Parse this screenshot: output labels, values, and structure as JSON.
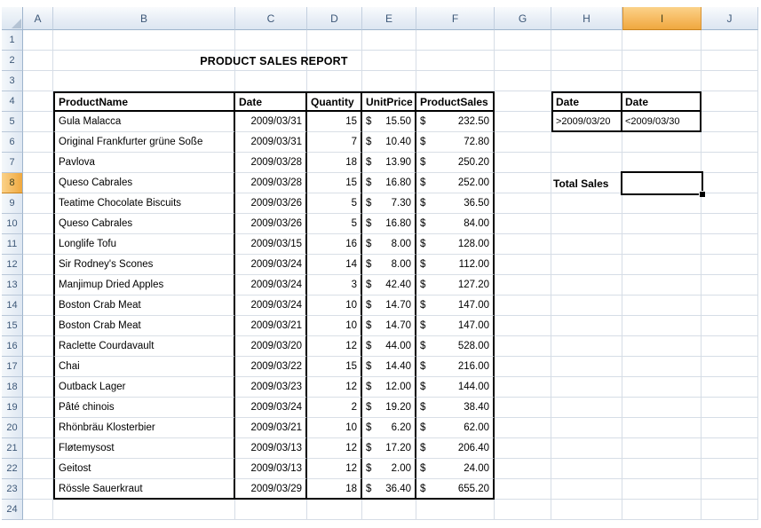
{
  "title": "PRODUCT SALES REPORT",
  "column_headers": [
    "A",
    "B",
    "C",
    "D",
    "E",
    "F",
    "G",
    "H",
    "I",
    "J"
  ],
  "row_numbers_visible": 24,
  "selection": {
    "active_cell": "I8",
    "selected_column": "I",
    "selected_row": 8
  },
  "sales_table": {
    "headers": [
      "ProductName",
      "Date",
      "Quantity",
      "UnitPrice",
      "ProductSales"
    ],
    "currency_symbol": "$",
    "rows": [
      {
        "product": "Gula Malacca",
        "date": "2009/03/31",
        "quantity": "15",
        "unit_price": "15.50",
        "product_sales": "232.50"
      },
      {
        "product": "Original Frankfurter grüne Soße",
        "date": "2009/03/31",
        "quantity": "7",
        "unit_price": "10.40",
        "product_sales": "72.80"
      },
      {
        "product": "Pavlova",
        "date": "2009/03/28",
        "quantity": "18",
        "unit_price": "13.90",
        "product_sales": "250.20"
      },
      {
        "product": "Queso Cabrales",
        "date": "2009/03/28",
        "quantity": "15",
        "unit_price": "16.80",
        "product_sales": "252.00"
      },
      {
        "product": "Teatime Chocolate Biscuits",
        "date": "2009/03/26",
        "quantity": "5",
        "unit_price": "7.30",
        "product_sales": "36.50"
      },
      {
        "product": "Queso Cabrales",
        "date": "2009/03/26",
        "quantity": "5",
        "unit_price": "16.80",
        "product_sales": "84.00"
      },
      {
        "product": "Longlife Tofu",
        "date": "2009/03/15",
        "quantity": "16",
        "unit_price": "8.00",
        "product_sales": "128.00"
      },
      {
        "product": "Sir Rodney's Scones",
        "date": "2009/03/24",
        "quantity": "14",
        "unit_price": "8.00",
        "product_sales": "112.00"
      },
      {
        "product": "Manjimup Dried Apples",
        "date": "2009/03/24",
        "quantity": "3",
        "unit_price": "42.40",
        "product_sales": "127.20"
      },
      {
        "product": "Boston Crab Meat",
        "date": "2009/03/24",
        "quantity": "10",
        "unit_price": "14.70",
        "product_sales": "147.00"
      },
      {
        "product": "Boston Crab Meat",
        "date": "2009/03/21",
        "quantity": "10",
        "unit_price": "14.70",
        "product_sales": "147.00"
      },
      {
        "product": "Raclette Courdavault",
        "date": "2009/03/20",
        "quantity": "12",
        "unit_price": "44.00",
        "product_sales": "528.00"
      },
      {
        "product": "Chai",
        "date": "2009/03/22",
        "quantity": "15",
        "unit_price": "14.40",
        "product_sales": "216.00"
      },
      {
        "product": "Outback Lager",
        "date": "2009/03/23",
        "quantity": "12",
        "unit_price": "12.00",
        "product_sales": "144.00"
      },
      {
        "product": "Pâté chinois",
        "date": "2009/03/24",
        "quantity": "2",
        "unit_price": "19.20",
        "product_sales": "38.40"
      },
      {
        "product": "Rhönbräu Klosterbier",
        "date": "2009/03/21",
        "quantity": "10",
        "unit_price": "6.20",
        "product_sales": "62.00"
      },
      {
        "product": "Fløtemysost",
        "date": "2009/03/13",
        "quantity": "12",
        "unit_price": "17.20",
        "product_sales": "206.40"
      },
      {
        "product": "Geitost",
        "date": "2009/03/13",
        "quantity": "12",
        "unit_price": "2.00",
        "product_sales": "24.00"
      },
      {
        "product": "Rössle Sauerkraut",
        "date": "2009/03/29",
        "quantity": "18",
        "unit_price": "36.40",
        "product_sales": "655.20"
      }
    ]
  },
  "criteria": {
    "headers": [
      "Date",
      "Date"
    ],
    "values": [
      ">2009/03/20",
      "<2009/03/30"
    ]
  },
  "total_sales": {
    "label": "Total Sales",
    "value": ""
  },
  "colors": {
    "selection_highlight": "#F6BA60",
    "header_blue": "#DCE6F1",
    "gridline": "#D6DDE6",
    "table_border": "#000000"
  }
}
